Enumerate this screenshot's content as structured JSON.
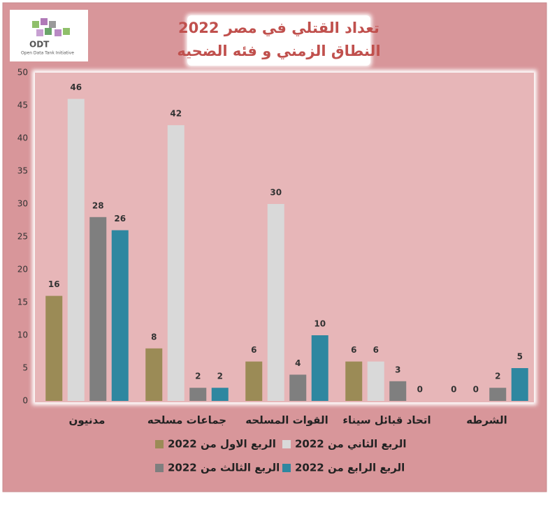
{
  "chart_data": {
    "type": "bar",
    "title": [
      "تعداد القتلي في مصر 2022",
      "النطاق الزمني و فئه الضحيه"
    ],
    "logo": {
      "name": "ODT",
      "tagline": "Open Data Tank Initiative"
    },
    "categories": [
      "مدنيون",
      "جماعات مسلحه",
      "القوات المسلحه",
      "اتحاد قبائل سيناء",
      "الشرطه"
    ],
    "series": [
      {
        "name": "الربع الاول من 2022",
        "color": "#9b8b56",
        "values": [
          16,
          8,
          6,
          6,
          0
        ]
      },
      {
        "name": "الربع الثاني من 2022",
        "color": "#d9d9d9",
        "values": [
          46,
          42,
          30,
          6,
          0
        ]
      },
      {
        "name": "الربع الثالث من 2022",
        "color": "#7f7f7f",
        "values": [
          28,
          2,
          4,
          3,
          2
        ]
      },
      {
        "name": "الربع الرابع من 2022",
        "color": "#2e87a0",
        "values": [
          26,
          2,
          10,
          0,
          5
        ]
      }
    ],
    "ylim": [
      0,
      50
    ],
    "yticks": [
      0,
      5,
      10,
      15,
      20,
      25,
      30,
      35,
      40,
      45,
      50
    ],
    "grid": false
  }
}
